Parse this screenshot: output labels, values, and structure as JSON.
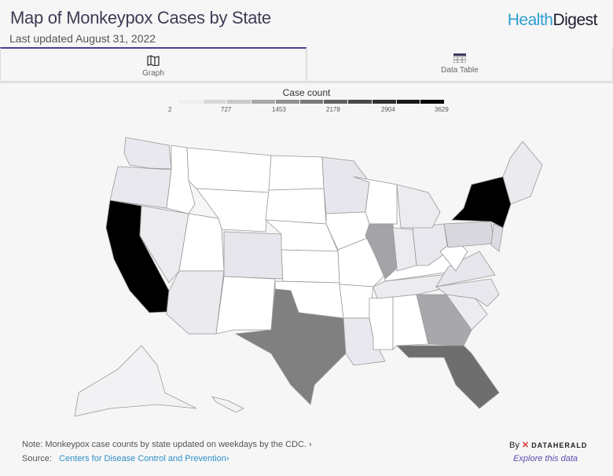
{
  "header": {
    "title": "Map of Monkeypox Cases by State",
    "subtitle": "Last updated August 31, 2022",
    "logo_a": "Health",
    "logo_b": "Digest"
  },
  "tabs": [
    {
      "label": "Graph",
      "icon": "map-icon",
      "active": true
    },
    {
      "label": "Data Table",
      "icon": "table-icon",
      "active": false
    }
  ],
  "legend": {
    "title": "Case count",
    "ticks": [
      "2",
      "727",
      "1453",
      "2178",
      "2904",
      "3629"
    ],
    "colors": [
      "#eeeef0",
      "#d8d8dc",
      "#c8c8cc",
      "#a8a8ac",
      "#909094",
      "#787878",
      "#606060",
      "#484848",
      "#303030",
      "#181818",
      "#000000"
    ]
  },
  "map": {
    "states": [
      {
        "id": "WA",
        "fill": "#e8e8ee"
      },
      {
        "id": "OR",
        "fill": "#e8e8ee"
      },
      {
        "id": "CA",
        "fill": "#000000"
      },
      {
        "id": "NV",
        "fill": "#ececf0"
      },
      {
        "id": "ID",
        "fill": "#ffffff"
      },
      {
        "id": "MT",
        "fill": "#ffffff"
      },
      {
        "id": "WY",
        "fill": "#ffffff"
      },
      {
        "id": "UT",
        "fill": "#ffffff"
      },
      {
        "id": "AZ",
        "fill": "#ebebef"
      },
      {
        "id": "CO",
        "fill": "#e6e6ec"
      },
      {
        "id": "NM",
        "fill": "#ffffff"
      },
      {
        "id": "ND",
        "fill": "#ffffff"
      },
      {
        "id": "SD",
        "fill": "#ffffff"
      },
      {
        "id": "NE",
        "fill": "#ffffff"
      },
      {
        "id": "KS",
        "fill": "#ffffff"
      },
      {
        "id": "OK",
        "fill": "#ffffff"
      },
      {
        "id": "TX",
        "fill": "#808080"
      },
      {
        "id": "MN",
        "fill": "#e6e6ec"
      },
      {
        "id": "IA",
        "fill": "#ffffff"
      },
      {
        "id": "MO",
        "fill": "#ffffff"
      },
      {
        "id": "AR",
        "fill": "#ffffff"
      },
      {
        "id": "LA",
        "fill": "#e8e8ee"
      },
      {
        "id": "WI",
        "fill": "#ffffff"
      },
      {
        "id": "IL",
        "fill": "#a4a4a8"
      },
      {
        "id": "MS",
        "fill": "#ffffff"
      },
      {
        "id": "AL",
        "fill": "#ffffff"
      },
      {
        "id": "TN",
        "fill": "#ececf0"
      },
      {
        "id": "KY",
        "fill": "#ffffff"
      },
      {
        "id": "IN",
        "fill": "#ececf0"
      },
      {
        "id": "OH",
        "fill": "#e8e8ee"
      },
      {
        "id": "MI",
        "fill": "#ececf0"
      },
      {
        "id": "GA",
        "fill": "#a8a8ac"
      },
      {
        "id": "FL",
        "fill": "#6e6e6e"
      },
      {
        "id": "SC",
        "fill": "#ececf0"
      },
      {
        "id": "NC",
        "fill": "#e8e8ee"
      },
      {
        "id": "VA",
        "fill": "#e6e6ec"
      },
      {
        "id": "WV",
        "fill": "#ffffff"
      },
      {
        "id": "PA",
        "fill": "#d8d8de"
      },
      {
        "id": "NY",
        "fill": "#000000"
      },
      {
        "id": "NJ",
        "fill": "#dcdce2"
      },
      {
        "id": "NE-states",
        "fill": "#ebebef"
      },
      {
        "id": "AK",
        "fill": "#f2f2f4"
      },
      {
        "id": "HI",
        "fill": "#f2f2f4"
      }
    ]
  },
  "footer": {
    "note": "Note: Monkeypox case counts by state updated on weekdays by the CDC. ›",
    "source_label": "Source:",
    "source_link": "Centers for Disease Control and Prevention›",
    "by": "By",
    "brand": "DATAHERALD",
    "explore": "Explore this data"
  }
}
